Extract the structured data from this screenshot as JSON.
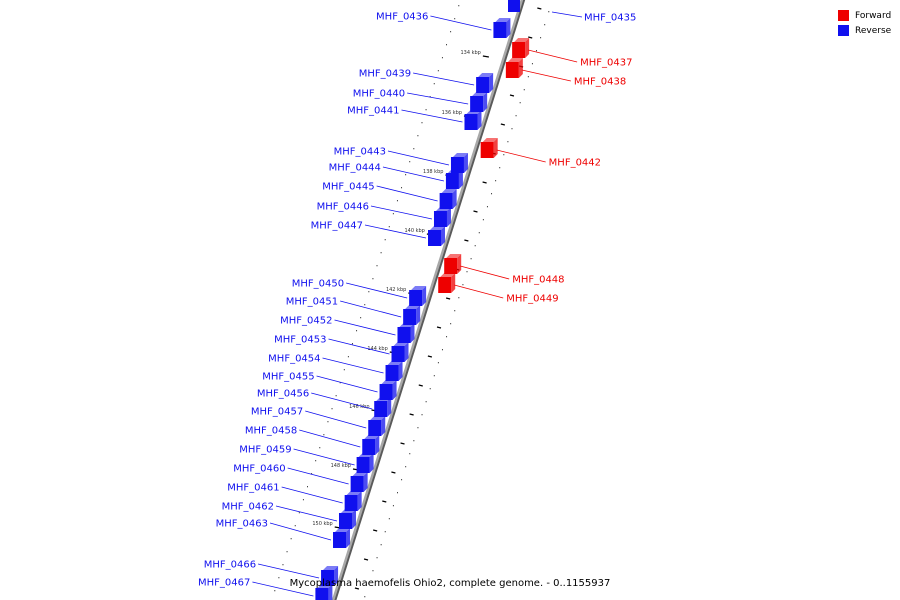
{
  "colors": {
    "forward": "#ee0000",
    "reverse": "#1010ee",
    "backbone": "#a8a8a8",
    "backbone_shadow": "#5a5a5a"
  },
  "legend": {
    "items": [
      {
        "key": "forward",
        "label": "Forward"
      },
      {
        "key": "reverse",
        "label": "Reverse"
      }
    ]
  },
  "caption": "Mycoplasma haemofelis Ohio2, complete genome. - 0..1155937",
  "scale_labels": [
    "134 kbp",
    "136 kbp",
    "138 kbp",
    "140 kbp",
    "142 kbp",
    "144 kbp",
    "146 kbp",
    "148 kbp",
    "150 kbp"
  ],
  "genes": [
    {
      "name": "MHF_0435",
      "strand": "reverse"
    },
    {
      "name": "MHF_0436",
      "strand": "reverse"
    },
    {
      "name": "MHF_0437",
      "strand": "forward"
    },
    {
      "name": "MHF_0438",
      "strand": "forward"
    },
    {
      "name": "MHF_0439",
      "strand": "reverse"
    },
    {
      "name": "MHF_0440",
      "strand": "reverse"
    },
    {
      "name": "MHF_0441",
      "strand": "reverse"
    },
    {
      "name": "MHF_0442",
      "strand": "forward"
    },
    {
      "name": "MHF_0443",
      "strand": "reverse"
    },
    {
      "name": "MHF_0444",
      "strand": "reverse"
    },
    {
      "name": "MHF_0445",
      "strand": "reverse"
    },
    {
      "name": "MHF_0446",
      "strand": "reverse"
    },
    {
      "name": "MHF_0447",
      "strand": "reverse"
    },
    {
      "name": "MHF_0448",
      "strand": "forward"
    },
    {
      "name": "MHF_0449",
      "strand": "forward"
    },
    {
      "name": "MHF_0450",
      "strand": "reverse"
    },
    {
      "name": "MHF_0451",
      "strand": "reverse"
    },
    {
      "name": "MHF_0452",
      "strand": "reverse"
    },
    {
      "name": "MHF_0453",
      "strand": "reverse"
    },
    {
      "name": "MHF_0454",
      "strand": "reverse"
    },
    {
      "name": "MHF_0455",
      "strand": "reverse"
    },
    {
      "name": "MHF_0456",
      "strand": "reverse"
    },
    {
      "name": "MHF_0457",
      "strand": "reverse"
    },
    {
      "name": "MHF_0458",
      "strand": "reverse"
    },
    {
      "name": "MHF_0459",
      "strand": "reverse"
    },
    {
      "name": "MHF_0460",
      "strand": "reverse"
    },
    {
      "name": "MHF_0461",
      "strand": "reverse"
    },
    {
      "name": "MHF_0462",
      "strand": "reverse"
    },
    {
      "name": "MHF_0463",
      "strand": "reverse"
    },
    {
      "name": "MHF_0466",
      "strand": "reverse"
    },
    {
      "name": "MHF_0467",
      "strand": "reverse"
    }
  ]
}
